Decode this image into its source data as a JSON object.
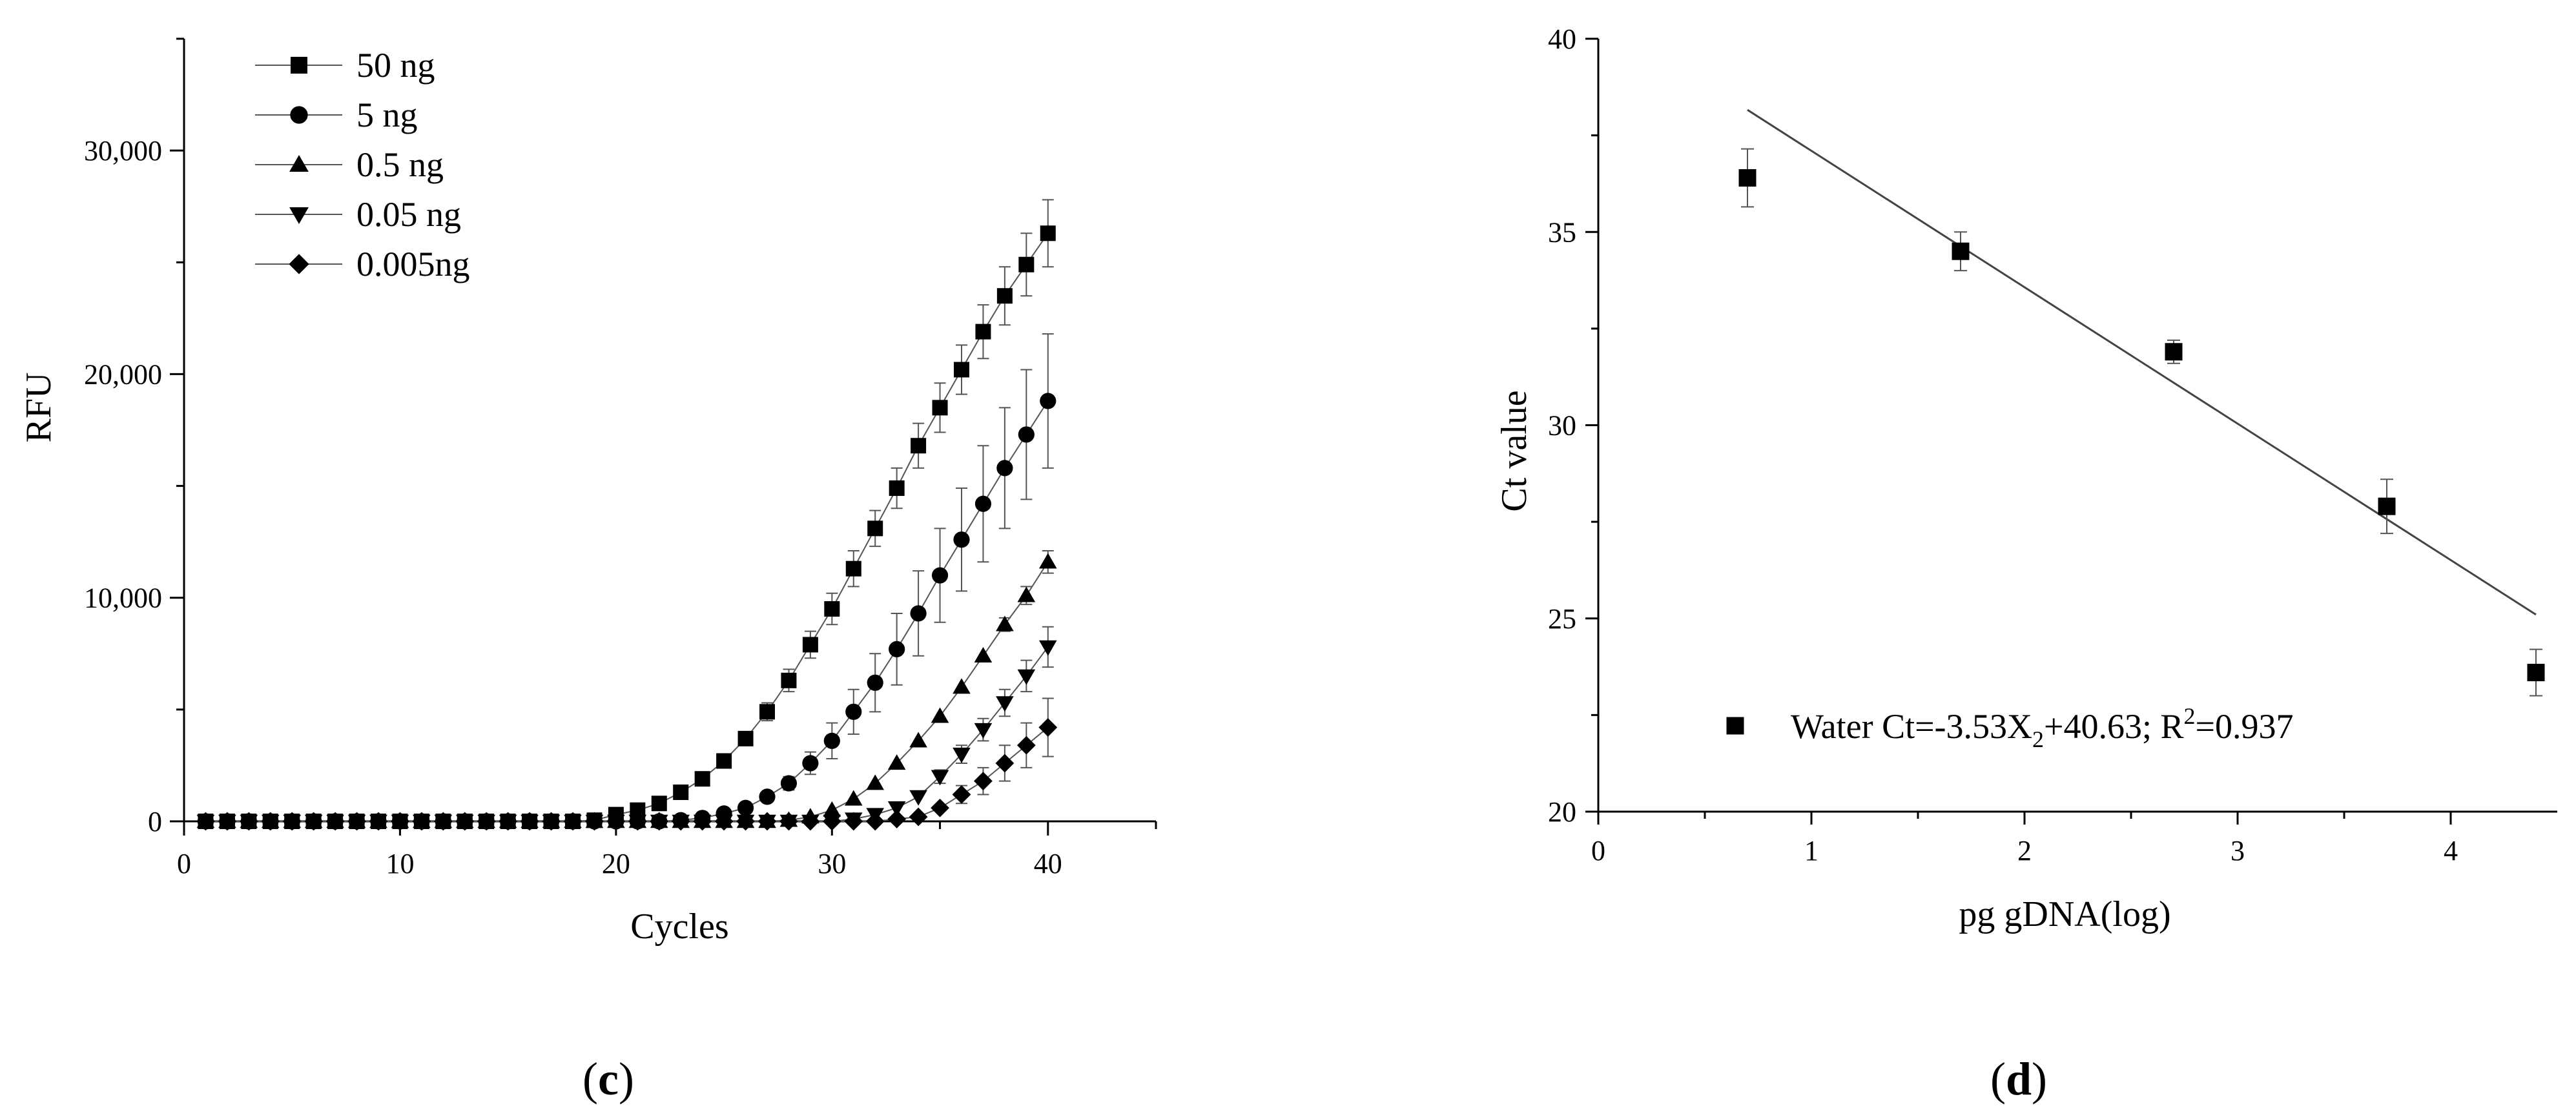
{
  "chart_data": [
    {
      "type": "line",
      "panel_label": "c",
      "xlabel": "Cycles",
      "ylabel": "RFU",
      "xlim": [
        0,
        45
      ],
      "ylim": [
        0,
        35000
      ],
      "xticks": [
        "0",
        "10",
        "20",
        "30",
        "40"
      ],
      "yticks": [
        "0",
        "10,000",
        "20,000",
        "30,000"
      ],
      "legend_position": "top-left",
      "grid": false,
      "x": [
        1,
        2,
        3,
        4,
        5,
        6,
        7,
        8,
        9,
        10,
        11,
        12,
        13,
        14,
        15,
        16,
        17,
        18,
        19,
        20,
        21,
        22,
        23,
        24,
        25,
        26,
        27,
        28,
        29,
        30,
        31,
        32,
        33,
        34,
        35,
        36,
        37,
        38,
        39,
        40
      ],
      "series": [
        {
          "name": "50 ng",
          "marker": "square",
          "values": [
            0,
            0,
            0,
            0,
            0,
            0,
            0,
            0,
            0,
            0,
            0,
            0,
            0,
            0,
            0,
            0,
            0,
            0,
            50,
            300,
            500,
            800,
            1300,
            1900,
            2700,
            3700,
            4900,
            6300,
            7900,
            9500,
            11300,
            13100,
            14900,
            16800,
            18500,
            20200,
            21900,
            23500,
            24900,
            26300
          ],
          "errors": [
            0,
            0,
            0,
            0,
            0,
            0,
            0,
            0,
            0,
            0,
            0,
            0,
            0,
            0,
            0,
            0,
            0,
            0,
            0,
            0,
            0,
            0,
            0,
            0,
            0,
            300,
            400,
            500,
            600,
            700,
            800,
            800,
            900,
            1000,
            1100,
            1100,
            1200,
            1300,
            1400,
            1500
          ]
        },
        {
          "name": "5 ng",
          "marker": "circle",
          "values": [
            0,
            0,
            0,
            0,
            0,
            0,
            0,
            0,
            0,
            0,
            0,
            0,
            0,
            0,
            0,
            0,
            0,
            0,
            0,
            0,
            0,
            0,
            50,
            150,
            350,
            600,
            1100,
            1700,
            2600,
            3600,
            4900,
            6200,
            7700,
            9300,
            11000,
            12600,
            14200,
            15800,
            17300,
            18800
          ],
          "errors": [
            0,
            0,
            0,
            0,
            0,
            0,
            0,
            0,
            0,
            0,
            0,
            0,
            0,
            0,
            0,
            0,
            0,
            0,
            0,
            0,
            0,
            0,
            0,
            0,
            0,
            0,
            0,
            300,
            500,
            800,
            1000,
            1300,
            1600,
            1900,
            2100,
            2300,
            2600,
            2700,
            2900,
            3000
          ]
        },
        {
          "name": "0.5 ng",
          "marker": "triangle-up",
          "values": [
            0,
            0,
            0,
            0,
            0,
            0,
            0,
            0,
            0,
            0,
            0,
            0,
            0,
            0,
            0,
            0,
            0,
            0,
            0,
            0,
            0,
            0,
            0,
            0,
            0,
            0,
            0,
            50,
            200,
            500,
            1000,
            1700,
            2600,
            3600,
            4700,
            6000,
            7400,
            8800,
            10100,
            11600
          ],
          "errors": [
            0,
            0,
            0,
            0,
            0,
            0,
            0,
            0,
            0,
            0,
            0,
            0,
            0,
            0,
            0,
            0,
            0,
            0,
            0,
            0,
            0,
            0,
            0,
            0,
            0,
            0,
            0,
            0,
            0,
            0,
            0,
            0,
            0,
            0,
            0,
            0,
            0,
            300,
            400,
            500
          ]
        },
        {
          "name": "0.05 ng",
          "marker": "triangle-down",
          "values": [
            0,
            0,
            0,
            0,
            0,
            0,
            0,
            0,
            0,
            0,
            0,
            0,
            0,
            0,
            0,
            0,
            0,
            0,
            0,
            0,
            0,
            0,
            0,
            0,
            0,
            0,
            0,
            0,
            0,
            0,
            100,
            300,
            600,
            1100,
            2000,
            3000,
            4100,
            5300,
            6500,
            7800
          ],
          "errors": [
            0,
            0,
            0,
            0,
            0,
            0,
            0,
            0,
            0,
            0,
            0,
            0,
            0,
            0,
            0,
            0,
            0,
            0,
            0,
            0,
            0,
            0,
            0,
            0,
            0,
            0,
            0,
            0,
            0,
            0,
            0,
            0,
            0,
            0,
            300,
            400,
            500,
            600,
            700,
            900
          ]
        },
        {
          "name": "0.005ng",
          "marker": "diamond",
          "values": [
            0,
            0,
            0,
            0,
            0,
            0,
            0,
            0,
            0,
            0,
            0,
            0,
            0,
            0,
            0,
            0,
            0,
            0,
            0,
            0,
            0,
            0,
            0,
            0,
            0,
            0,
            0,
            0,
            0,
            0,
            0,
            0,
            100,
            200,
            600,
            1200,
            1800,
            2600,
            3400,
            4200
          ],
          "errors": [
            0,
            0,
            0,
            0,
            0,
            0,
            0,
            0,
            0,
            0,
            0,
            0,
            0,
            0,
            0,
            0,
            0,
            0,
            0,
            0,
            0,
            0,
            0,
            0,
            0,
            0,
            0,
            0,
            0,
            0,
            0,
            0,
            0,
            0,
            0,
            400,
            600,
            800,
            1000,
            1300
          ]
        }
      ]
    },
    {
      "type": "scatter",
      "panel_label": "d",
      "xlabel": "pg gDNA(log)",
      "ylabel": "Ct value",
      "xlim": [
        0,
        4.5
      ],
      "ylim": [
        20,
        40
      ],
      "xticks": [
        "0",
        "1",
        "2",
        "3",
        "4"
      ],
      "yticks": [
        "20",
        "25",
        "30",
        "35",
        "40"
      ],
      "grid": false,
      "legend_position": "bottom-left",
      "legend_text": {
        "pre": "Water Ct=-3.53X",
        "sub": "2",
        "mid": "+40.63; R",
        "sup": "2",
        "post": "=0.937"
      },
      "points": {
        "x": [
          0.7,
          1.7,
          2.7,
          3.7,
          4.4
        ],
        "y": [
          36.4,
          34.5,
          31.9,
          27.9,
          23.6
        ],
        "errors": [
          0.75,
          0.5,
          0.3,
          0.7,
          0.6
        ]
      },
      "fit_line": {
        "slope": -3.53,
        "intercept": 40.63,
        "x_range": [
          0.7,
          4.4
        ]
      }
    }
  ]
}
